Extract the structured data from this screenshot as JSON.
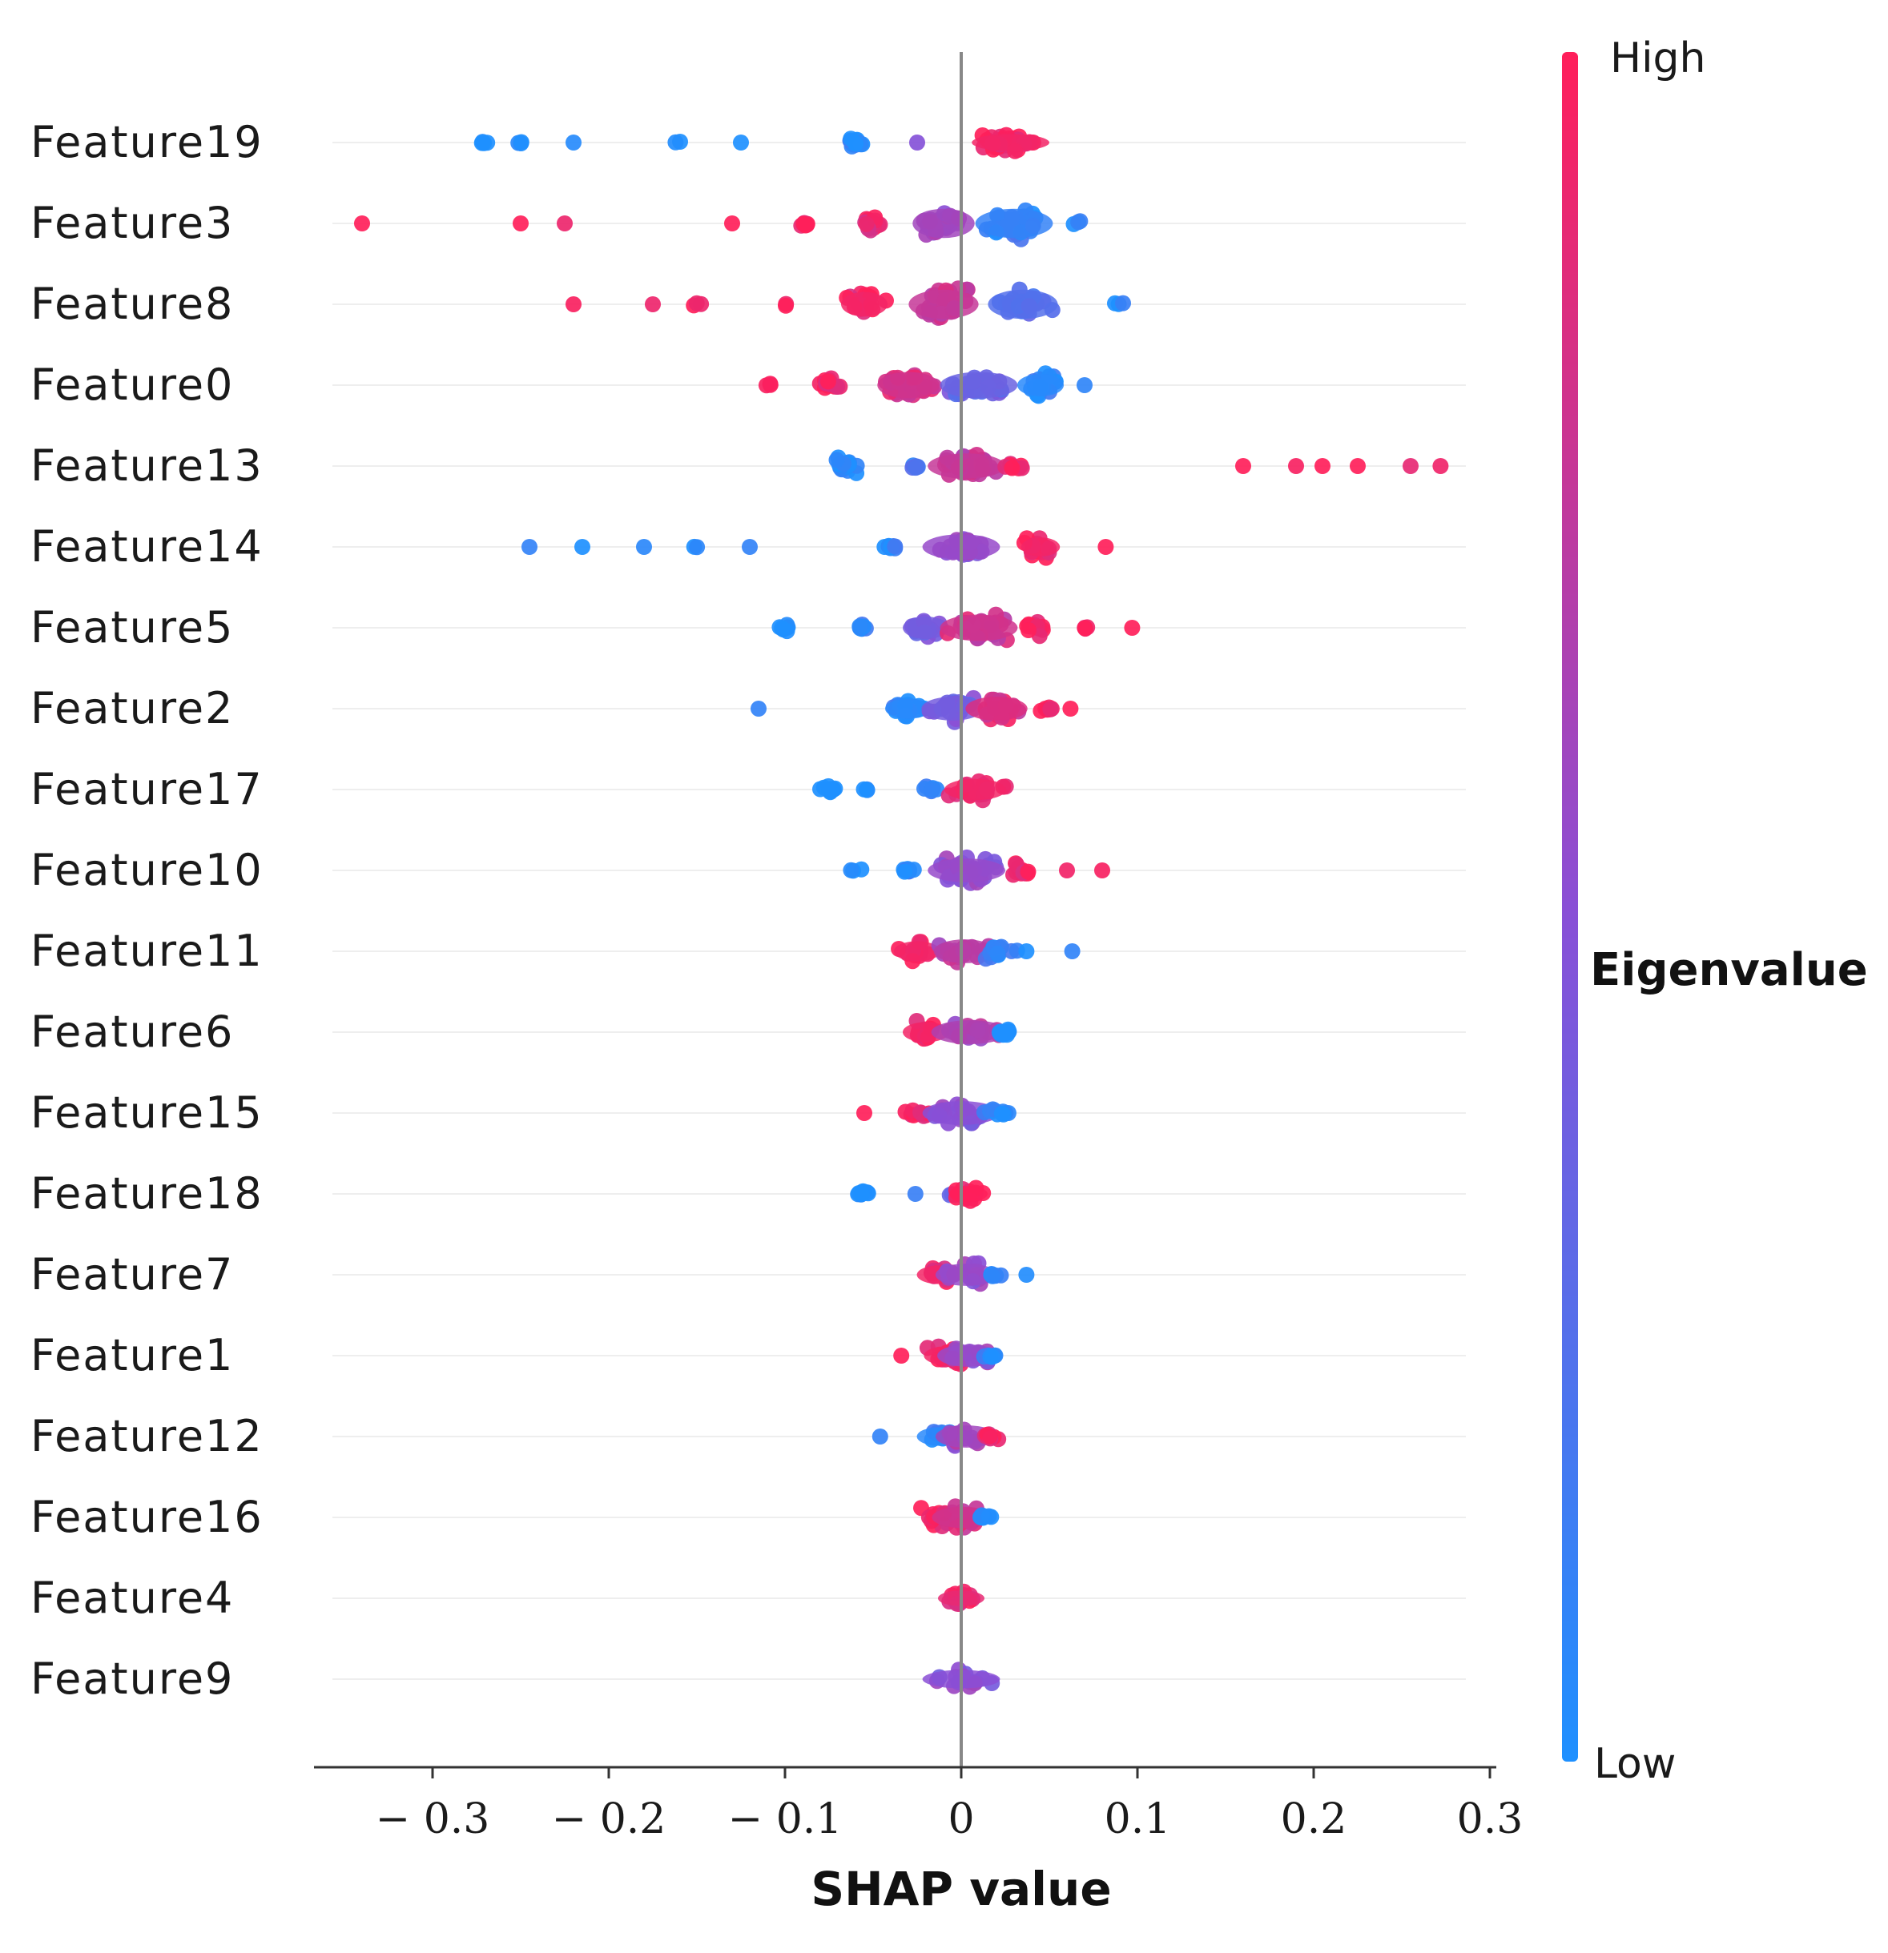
{
  "chart_data": {
    "type": "scatter",
    "subtype": "shap-beeswarm",
    "title": "",
    "xlabel": "SHAP value",
    "ylabel": "",
    "xlim": [
      -0.36,
      0.3
    ],
    "xticks": [
      -0.3,
      -0.2,
      -0.1,
      0,
      0.1,
      0.2,
      0.3
    ],
    "xtick_labels": [
      "− 0.3",
      "− 0.2",
      "− 0.1",
      "0",
      "0.1",
      "0.2",
      "0.3"
    ],
    "grid": false,
    "colorbar": {
      "title": "Eigenvalue",
      "high_label": "High",
      "low_label": "Low",
      "low_color": "#1e90ff",
      "mid_color": "#8a4fd6",
      "high_color": "#ff1f5a"
    },
    "features": [
      {
        "name": "Feature19",
        "spread": 0.32,
        "clusters": [
          {
            "x": -0.27,
            "v": 0.0,
            "w": 0.05,
            "n": 4
          },
          {
            "x": -0.25,
            "v": 0.0,
            "w": 0.1,
            "n": 3
          },
          {
            "x": -0.22,
            "v": 0.0,
            "w": 0.0,
            "n": 1
          },
          {
            "x": -0.16,
            "v": 0.0,
            "w": 0.1,
            "n": 2
          },
          {
            "x": -0.125,
            "v": 0.0,
            "w": 0.0,
            "n": 1
          },
          {
            "x": -0.06,
            "v": 0.05,
            "w": 0.3,
            "n": 14
          },
          {
            "x": -0.025,
            "v": 0.5,
            "w": 0.0,
            "n": 1
          },
          {
            "x": 0.028,
            "v": 0.95,
            "w": 1.0,
            "n": 40
          }
        ]
      },
      {
        "name": "Feature3",
        "spread": 0.55,
        "clusters": [
          {
            "x": -0.34,
            "v": 1.0,
            "w": 0.0,
            "n": 1
          },
          {
            "x": -0.25,
            "v": 1.0,
            "w": 0.0,
            "n": 1
          },
          {
            "x": -0.225,
            "v": 1.0,
            "w": 0.0,
            "n": 1
          },
          {
            "x": -0.13,
            "v": 1.0,
            "w": 0.0,
            "n": 1
          },
          {
            "x": -0.09,
            "v": 0.95,
            "w": 0.25,
            "n": 8
          },
          {
            "x": -0.05,
            "v": 0.9,
            "w": 0.3,
            "n": 14
          },
          {
            "x": -0.01,
            "v": 0.6,
            "w": 0.8,
            "n": 26
          },
          {
            "x": 0.03,
            "v": 0.1,
            "w": 1.0,
            "n": 38
          },
          {
            "x": 0.065,
            "v": 0.0,
            "w": 0.15,
            "n": 3
          }
        ]
      },
      {
        "name": "Feature8",
        "spread": 0.55,
        "clusters": [
          {
            "x": -0.22,
            "v": 1.0,
            "w": 0.0,
            "n": 1
          },
          {
            "x": -0.175,
            "v": 1.0,
            "w": 0.0,
            "n": 1
          },
          {
            "x": -0.15,
            "v": 1.0,
            "w": 0.1,
            "n": 3
          },
          {
            "x": -0.1,
            "v": 1.0,
            "w": 0.1,
            "n": 2
          },
          {
            "x": -0.055,
            "v": 0.95,
            "w": 0.6,
            "n": 22
          },
          {
            "x": -0.01,
            "v": 0.75,
            "w": 0.9,
            "n": 34
          },
          {
            "x": 0.035,
            "v": 0.25,
            "w": 0.9,
            "n": 30
          },
          {
            "x": 0.09,
            "v": 0.0,
            "w": 0.1,
            "n": 3
          }
        ]
      },
      {
        "name": "Feature0",
        "spread": 0.5,
        "clusters": [
          {
            "x": -0.11,
            "v": 1.0,
            "w": 0.1,
            "n": 3
          },
          {
            "x": -0.075,
            "v": 0.95,
            "w": 0.4,
            "n": 14
          },
          {
            "x": -0.03,
            "v": 0.8,
            "w": 0.8,
            "n": 28
          },
          {
            "x": 0.01,
            "v": 0.35,
            "w": 1.0,
            "n": 34
          },
          {
            "x": 0.045,
            "v": 0.05,
            "w": 0.6,
            "n": 20
          },
          {
            "x": 0.07,
            "v": 0.0,
            "w": 0.0,
            "n": 1
          }
        ]
      },
      {
        "name": "Feature13",
        "spread": 0.48,
        "clusters": [
          {
            "x": -0.065,
            "v": 0.0,
            "w": 0.4,
            "n": 16
          },
          {
            "x": -0.025,
            "v": 0.2,
            "w": 0.2,
            "n": 6
          },
          {
            "x": 0.003,
            "v": 0.75,
            "w": 1.0,
            "n": 34
          },
          {
            "x": 0.03,
            "v": 0.95,
            "w": 0.3,
            "n": 8
          },
          {
            "x": 0.16,
            "v": 1.0,
            "w": 0.0,
            "n": 1
          },
          {
            "x": 0.19,
            "v": 1.0,
            "w": 0.0,
            "n": 1
          },
          {
            "x": 0.205,
            "v": 1.0,
            "w": 0.0,
            "n": 1
          },
          {
            "x": 0.225,
            "v": 1.0,
            "w": 0.0,
            "n": 1
          },
          {
            "x": 0.255,
            "v": 1.0,
            "w": 0.0,
            "n": 1
          },
          {
            "x": 0.272,
            "v": 1.0,
            "w": 0.0,
            "n": 1
          }
        ]
      },
      {
        "name": "Feature14",
        "spread": 0.48,
        "clusters": [
          {
            "x": -0.245,
            "v": 0.0,
            "w": 0.0,
            "n": 1
          },
          {
            "x": -0.215,
            "v": 0.0,
            "w": 0.0,
            "n": 1
          },
          {
            "x": -0.18,
            "v": 0.0,
            "w": 0.0,
            "n": 1
          },
          {
            "x": -0.15,
            "v": 0.0,
            "w": 0.1,
            "n": 2
          },
          {
            "x": -0.12,
            "v": 0.0,
            "w": 0.0,
            "n": 1
          },
          {
            "x": -0.04,
            "v": 0.05,
            "w": 0.15,
            "n": 10
          },
          {
            "x": 0.0,
            "v": 0.55,
            "w": 1.0,
            "n": 30
          },
          {
            "x": 0.045,
            "v": 0.95,
            "w": 0.5,
            "n": 18
          },
          {
            "x": 0.082,
            "v": 1.0,
            "w": 0.0,
            "n": 1
          }
        ]
      },
      {
        "name": "Feature5",
        "spread": 0.5,
        "clusters": [
          {
            "x": -0.1,
            "v": 0.0,
            "w": 0.3,
            "n": 8
          },
          {
            "x": -0.055,
            "v": 0.1,
            "w": 0.3,
            "n": 8
          },
          {
            "x": -0.02,
            "v": 0.4,
            "w": 0.6,
            "n": 16
          },
          {
            "x": 0.01,
            "v": 0.8,
            "w": 1.0,
            "n": 32
          },
          {
            "x": 0.04,
            "v": 0.95,
            "w": 0.5,
            "n": 12
          },
          {
            "x": 0.072,
            "v": 1.0,
            "w": 0.1,
            "n": 4
          },
          {
            "x": 0.097,
            "v": 1.0,
            "w": 0.0,
            "n": 1
          }
        ]
      },
      {
        "name": "Feature2",
        "spread": 0.45,
        "clusters": [
          {
            "x": -0.115,
            "v": 0.0,
            "w": 0.0,
            "n": 1
          },
          {
            "x": -0.03,
            "v": 0.05,
            "w": 0.6,
            "n": 18
          },
          {
            "x": -0.005,
            "v": 0.4,
            "w": 0.8,
            "n": 22
          },
          {
            "x": 0.02,
            "v": 0.85,
            "w": 0.8,
            "n": 22
          },
          {
            "x": 0.05,
            "v": 1.0,
            "w": 0.3,
            "n": 8
          },
          {
            "x": 0.062,
            "v": 1.0,
            "w": 0.0,
            "n": 1
          }
        ]
      },
      {
        "name": "Feature17",
        "spread": 0.4,
        "clusters": [
          {
            "x": -0.075,
            "v": 0.0,
            "w": 0.3,
            "n": 10
          },
          {
            "x": -0.055,
            "v": 0.0,
            "w": 0.1,
            "n": 3
          },
          {
            "x": -0.018,
            "v": 0.1,
            "w": 0.3,
            "n": 8
          },
          {
            "x": 0.008,
            "v": 0.95,
            "w": 0.8,
            "n": 20
          }
        ]
      },
      {
        "name": "Feature10",
        "spread": 0.45,
        "clusters": [
          {
            "x": -0.06,
            "v": 0.0,
            "w": 0.1,
            "n": 3
          },
          {
            "x": -0.03,
            "v": 0.05,
            "w": 0.3,
            "n": 10
          },
          {
            "x": 0.003,
            "v": 0.55,
            "w": 1.0,
            "n": 30
          },
          {
            "x": 0.035,
            "v": 0.95,
            "w": 0.4,
            "n": 12
          },
          {
            "x": 0.06,
            "v": 1.0,
            "w": 0.0,
            "n": 1
          },
          {
            "x": 0.08,
            "v": 1.0,
            "w": 0.0,
            "n": 1
          }
        ]
      },
      {
        "name": "Feature11",
        "spread": 0.45,
        "clusters": [
          {
            "x": -0.025,
            "v": 0.95,
            "w": 0.6,
            "n": 16
          },
          {
            "x": 0.002,
            "v": 0.7,
            "w": 0.8,
            "n": 22
          },
          {
            "x": 0.022,
            "v": 0.1,
            "w": 0.5,
            "n": 12
          },
          {
            "x": 0.037,
            "v": 0.0,
            "w": 0.0,
            "n": 1
          },
          {
            "x": 0.063,
            "v": 0.0,
            "w": 0.0,
            "n": 1
          }
        ]
      },
      {
        "name": "Feature6",
        "spread": 0.45,
        "clusters": [
          {
            "x": -0.02,
            "v": 0.95,
            "w": 0.6,
            "n": 18
          },
          {
            "x": 0.005,
            "v": 0.65,
            "w": 1.0,
            "n": 24
          },
          {
            "x": 0.025,
            "v": 0.05,
            "w": 0.4,
            "n": 10
          }
        ]
      },
      {
        "name": "Feature15",
        "spread": 0.45,
        "clusters": [
          {
            "x": -0.055,
            "v": 1.0,
            "w": 0.0,
            "n": 1
          },
          {
            "x": -0.025,
            "v": 0.95,
            "w": 0.4,
            "n": 10
          },
          {
            "x": 0.0,
            "v": 0.5,
            "w": 1.0,
            "n": 24
          },
          {
            "x": 0.022,
            "v": 0.05,
            "w": 0.4,
            "n": 10
          }
        ]
      },
      {
        "name": "Feature18",
        "spread": 0.4,
        "clusters": [
          {
            "x": -0.055,
            "v": 0.0,
            "w": 0.3,
            "n": 10
          },
          {
            "x": -0.026,
            "v": 0.0,
            "w": 0.0,
            "n": 1
          },
          {
            "x": -0.005,
            "v": 0.3,
            "w": 0.1,
            "n": 3
          },
          {
            "x": 0.004,
            "v": 1.0,
            "w": 0.5,
            "n": 18
          }
        ]
      },
      {
        "name": "Feature7",
        "spread": 0.42,
        "clusters": [
          {
            "x": -0.012,
            "v": 0.95,
            "w": 0.6,
            "n": 14
          },
          {
            "x": 0.003,
            "v": 0.55,
            "w": 0.8,
            "n": 16
          },
          {
            "x": 0.018,
            "v": 0.1,
            "w": 0.3,
            "n": 8
          },
          {
            "x": 0.037,
            "v": 0.0,
            "w": 0.0,
            "n": 1
          }
        ]
      },
      {
        "name": "Feature1",
        "spread": 0.42,
        "clusters": [
          {
            "x": -0.034,
            "v": 1.0,
            "w": 0.0,
            "n": 1
          },
          {
            "x": -0.008,
            "v": 0.95,
            "w": 0.6,
            "n": 14
          },
          {
            "x": 0.004,
            "v": 0.55,
            "w": 0.8,
            "n": 14
          },
          {
            "x": 0.018,
            "v": 0.05,
            "w": 0.3,
            "n": 8
          }
        ]
      },
      {
        "name": "Feature12",
        "spread": 0.42,
        "clusters": [
          {
            "x": -0.046,
            "v": 0.0,
            "w": 0.0,
            "n": 1
          },
          {
            "x": -0.012,
            "v": 0.05,
            "w": 0.6,
            "n": 14
          },
          {
            "x": 0.003,
            "v": 0.6,
            "w": 0.8,
            "n": 14
          },
          {
            "x": 0.016,
            "v": 0.95,
            "w": 0.3,
            "n": 8
          }
        ]
      },
      {
        "name": "Feature16",
        "spread": 0.4,
        "clusters": [
          {
            "x": -0.01,
            "v": 0.95,
            "w": 0.6,
            "n": 12
          },
          {
            "x": 0.001,
            "v": 0.8,
            "w": 0.8,
            "n": 14
          },
          {
            "x": 0.014,
            "v": 0.0,
            "w": 0.3,
            "n": 6
          }
        ]
      },
      {
        "name": "Feature4",
        "spread": 0.35,
        "clusters": [
          {
            "x": 0.0,
            "v": 0.9,
            "w": 0.6,
            "n": 14
          }
        ]
      },
      {
        "name": "Feature9",
        "spread": 0.35,
        "clusters": [
          {
            "x": 0.0,
            "v": 0.5,
            "w": 1.0,
            "n": 14
          }
        ]
      }
    ]
  }
}
